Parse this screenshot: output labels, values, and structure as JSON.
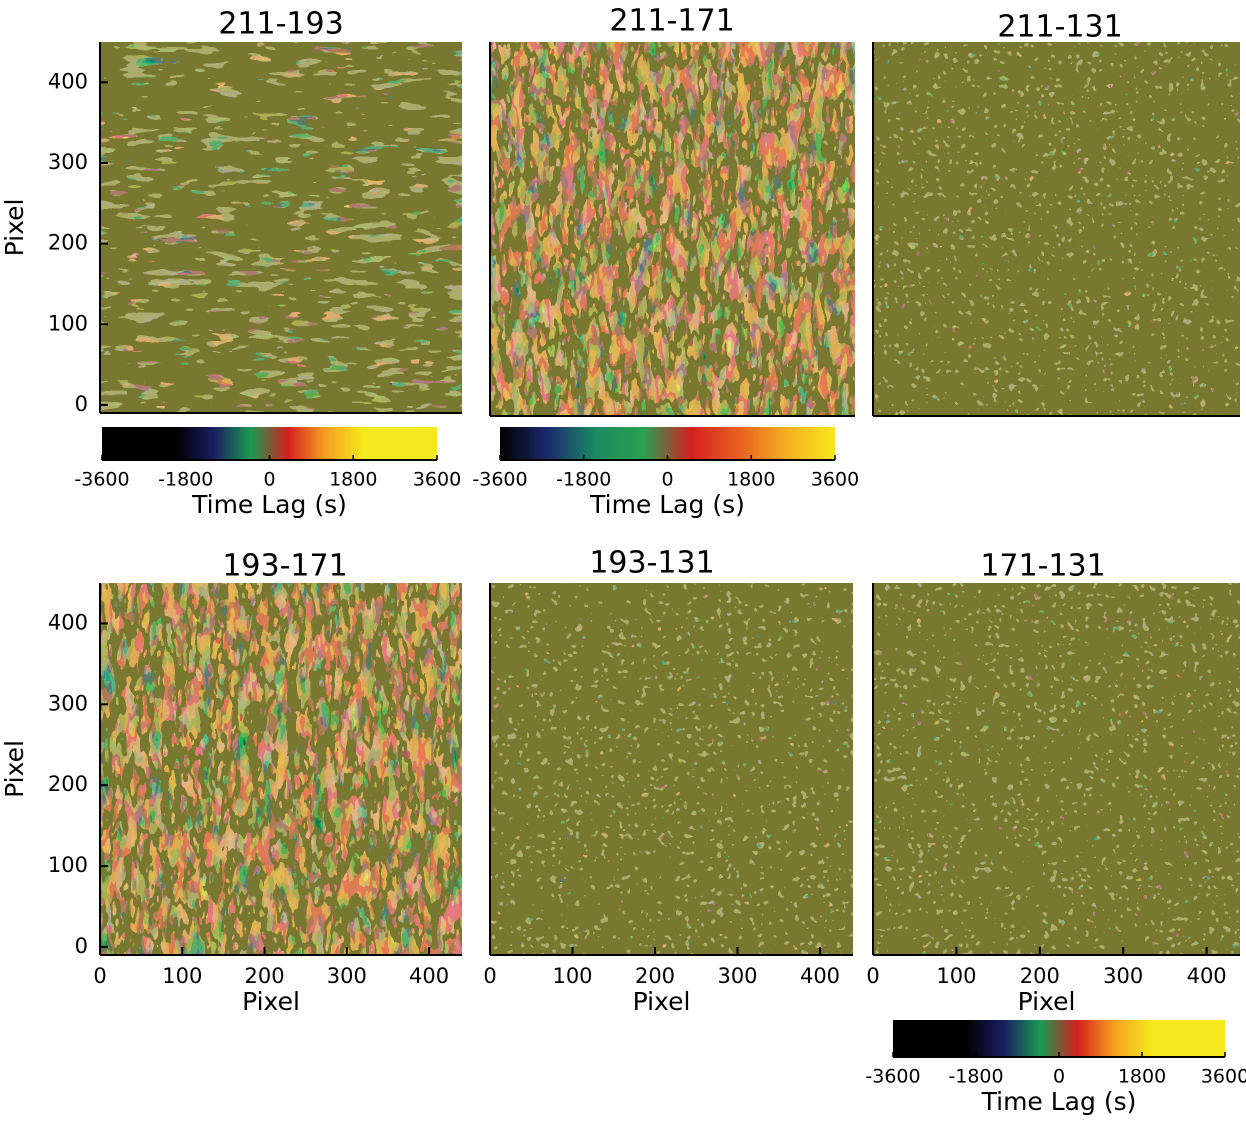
{
  "chart_data": [
    {
      "type": "heatmap",
      "title": "211-193",
      "xlim": [
        0,
        440
      ],
      "ylim": [
        -10,
        450
      ],
      "yticks": [
        0,
        100,
        200,
        300,
        400
      ],
      "ylabel": "Pixel",
      "colorbar": {
        "clim": [
          -3600,
          3600
        ],
        "ticks": [
          -3600,
          -1800,
          0,
          1800,
          3600
        ],
        "label": "Time Lag (s)",
        "colors": [
          "#000000",
          "#000000",
          "#000000",
          "#1b1f63",
          "#1a9a50",
          "#d42020",
          "#f5a020",
          "#f5e81e",
          "#f5e81e",
          "#f5e81e"
        ]
      }
    },
    {
      "type": "heatmap",
      "title": "211-171",
      "xlim": [
        0,
        440
      ],
      "ylim": [
        -10,
        450
      ],
      "colorbar": {
        "clim": [
          -3600,
          3600
        ],
        "ticks": [
          -3600,
          -1800,
          0,
          1800,
          3600
        ],
        "label": "Time Lag (s)",
        "colors": [
          "#000000",
          "#1b2a6e",
          "#1a8a60",
          "#2aa050",
          "#d42020",
          "#e86020",
          "#f5b020",
          "#f5e81e"
        ]
      }
    },
    {
      "type": "heatmap",
      "title": "211-131",
      "xlim": [
        0,
        440
      ],
      "ylim": [
        -10,
        450
      ]
    },
    {
      "type": "heatmap",
      "title": "193-171",
      "xlim": [
        0,
        440
      ],
      "ylim": [
        -10,
        450
      ],
      "xticks": [
        0,
        100,
        200,
        300,
        400
      ],
      "yticks": [
        0,
        100,
        200,
        300,
        400
      ],
      "xlabel": "Pixel",
      "ylabel": "Pixel"
    },
    {
      "type": "heatmap",
      "title": "193-131",
      "xlim": [
        0,
        440
      ],
      "ylim": [
        -10,
        450
      ],
      "xticks": [
        0,
        100,
        200,
        300,
        400
      ],
      "xlabel": "Pixel"
    },
    {
      "type": "heatmap",
      "title": "171-131",
      "xlim": [
        0,
        440
      ],
      "ylim": [
        -10,
        450
      ],
      "xticks": [
        0,
        100,
        200,
        300,
        400
      ],
      "xlabel": "Pixel",
      "colorbar": {
        "clim": [
          -3600,
          3600
        ],
        "ticks": [
          -3600,
          -1800,
          0,
          1800,
          3600
        ],
        "label": "Time Lag (s)",
        "colors": [
          "#000000",
          "#000000",
          "#000000",
          "#1b1f63",
          "#1a9a50",
          "#d42020",
          "#f5a020",
          "#f5e81e",
          "#f5e81e",
          "#f5e81e"
        ]
      }
    }
  ]
}
